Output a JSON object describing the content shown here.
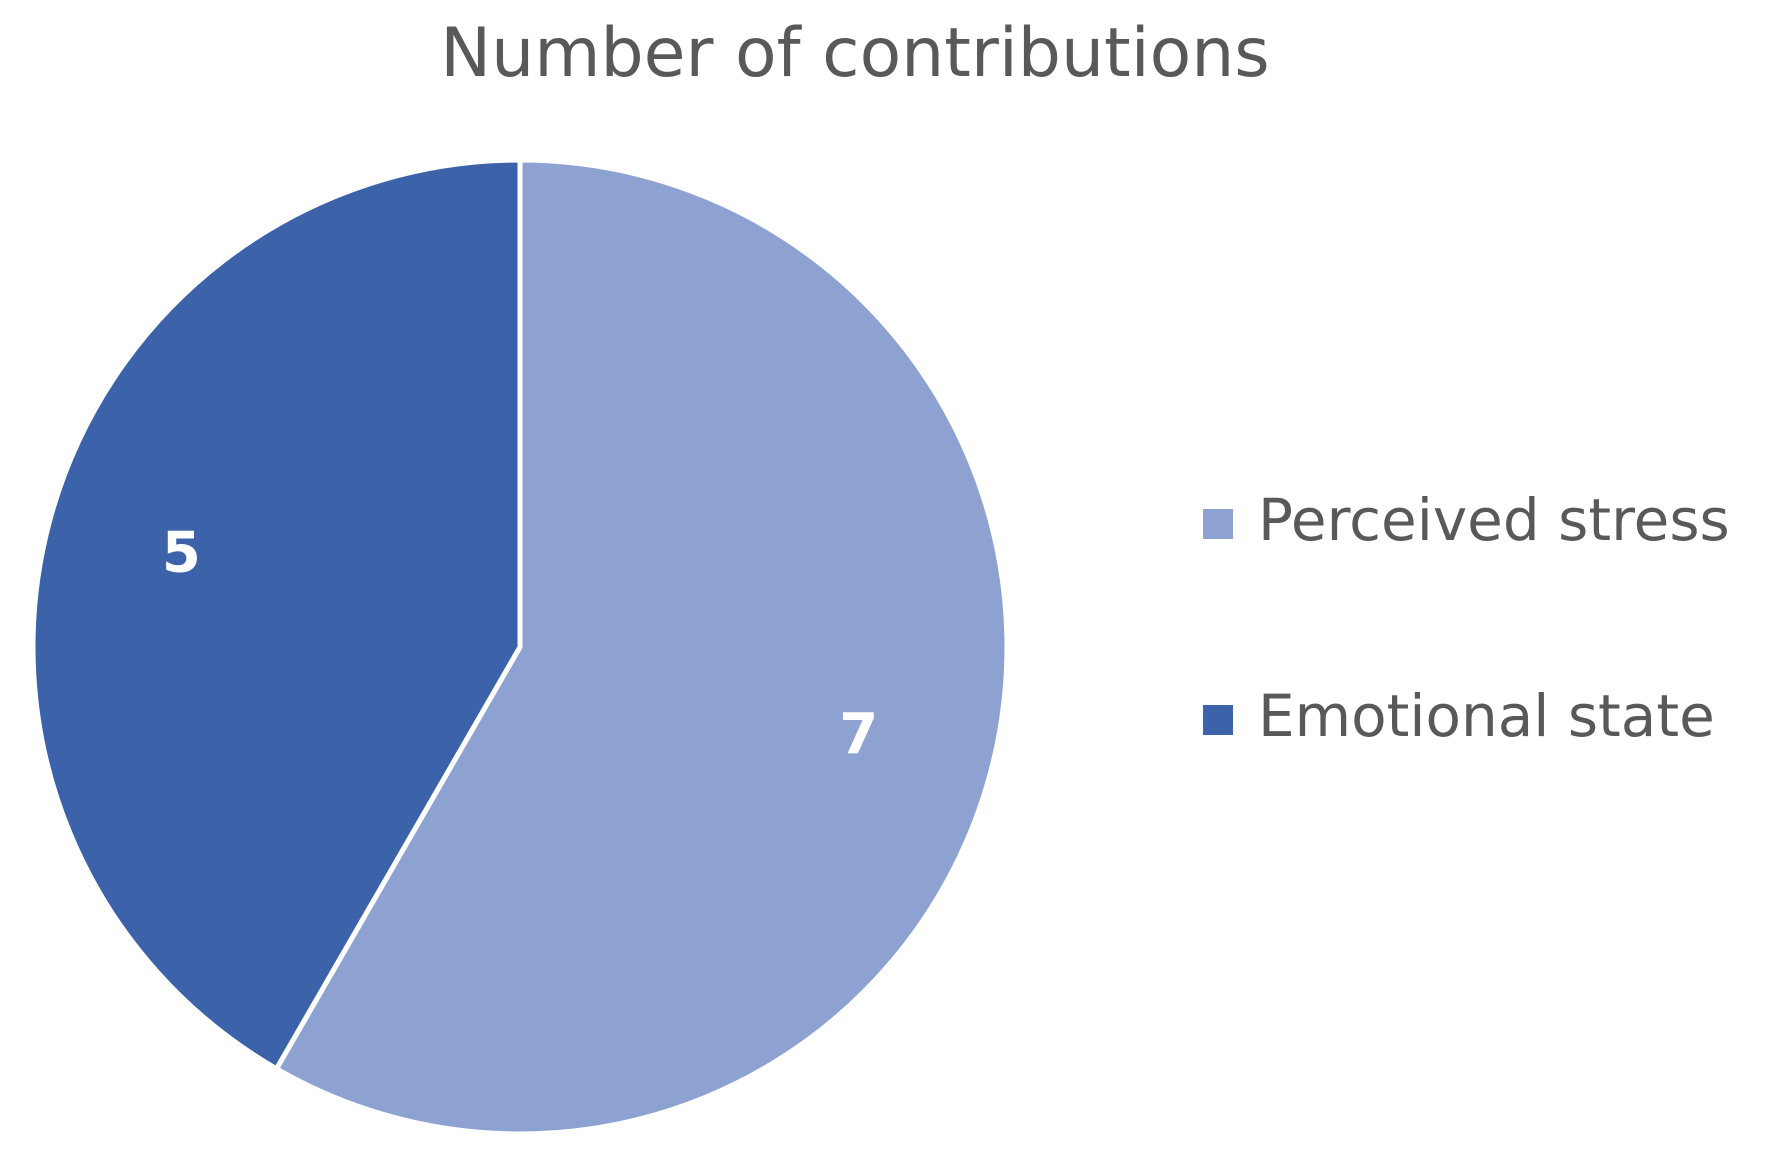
{
  "chart_data": {
    "type": "pie",
    "title": "Number of contributions",
    "slices": [
      {
        "label": "Perceived stress",
        "value": 7,
        "color": "#8EA2D2"
      },
      {
        "label": "Emotional state",
        "value": 5,
        "color": "#3C63AA"
      }
    ],
    "start_angle": "12 o'clock",
    "direction": "clockwise",
    "data_labels": true,
    "legend_position": "right"
  },
  "colors": {
    "background": "#FFFFFF",
    "text": "#595959",
    "slice_border": "#FFFFFF"
  }
}
